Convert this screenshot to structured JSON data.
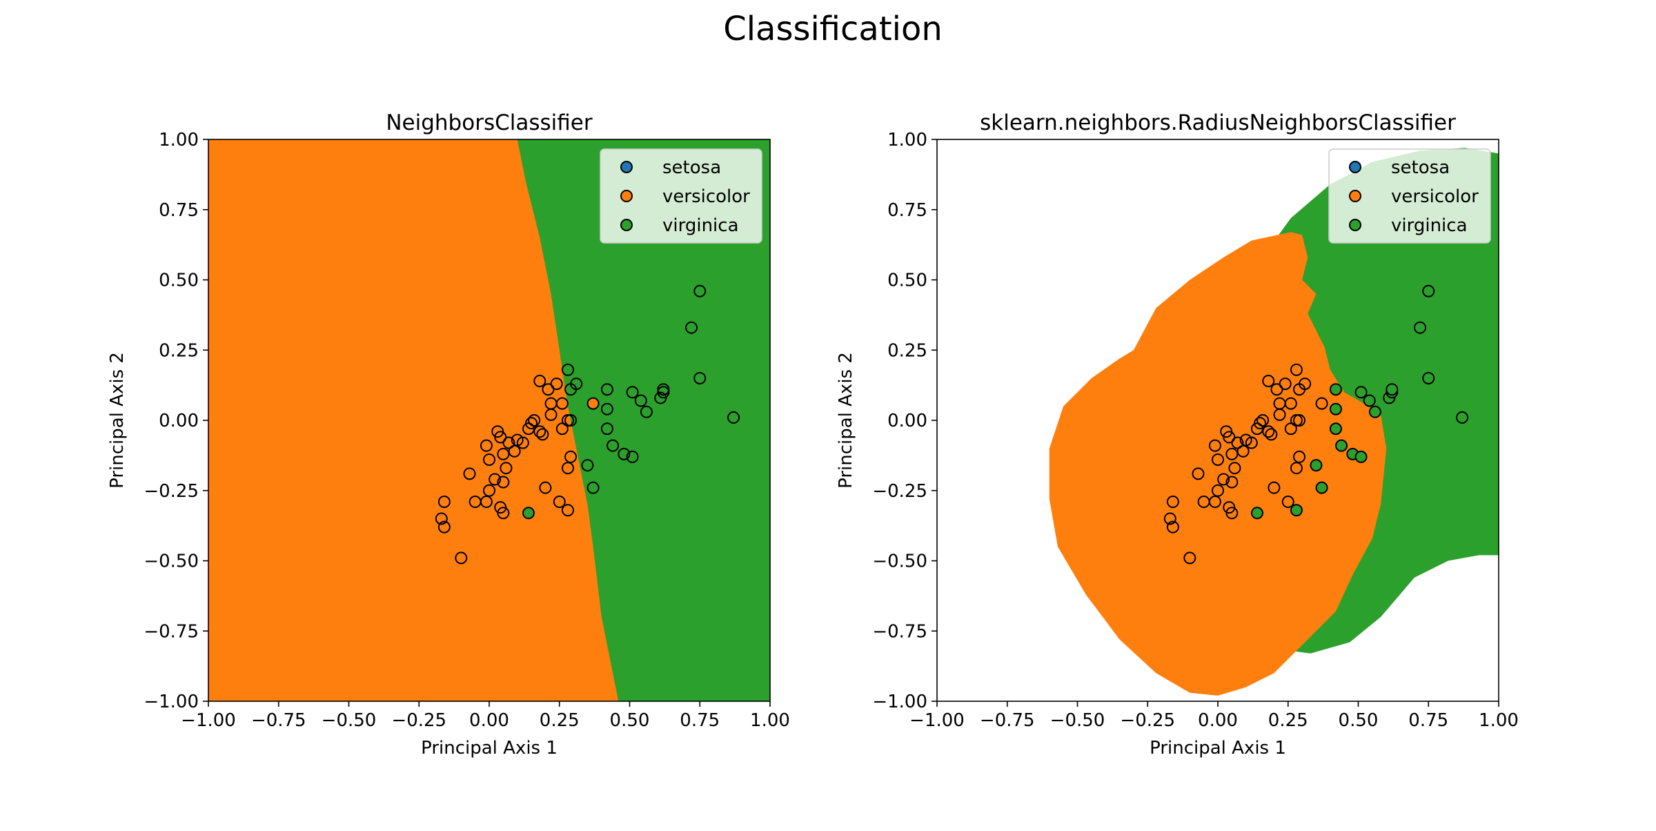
{
  "figure": {
    "title": "Classification"
  },
  "colors": {
    "setosa": "#1f77b4",
    "versicolor": "#ff7f0e",
    "virginica": "#2ca02c",
    "marker_edge": "#000000"
  },
  "chart_data": [
    {
      "type": "scatter",
      "title": "NeighborsClassifier",
      "xlabel": "Principal Axis 1",
      "ylabel": "Principal Axis 2",
      "xlim": [
        -1.0,
        1.0
      ],
      "ylim": [
        -1.0,
        1.0
      ],
      "xticks": [
        "−1.00",
        "−0.75",
        "−0.50",
        "−0.25",
        "0.00",
        "0.25",
        "0.50",
        "0.75",
        "1.00"
      ],
      "yticks": [
        "−1.00",
        "−0.75",
        "−0.50",
        "−0.25",
        "0.00",
        "0.25",
        "0.50",
        "0.75",
        "1.00"
      ],
      "grid": false,
      "legend_position": "top-right",
      "legend": [
        "setosa",
        "versicolor",
        "virginica"
      ],
      "decision_regions": "versicolor region on the left, virginica region on the right; boundary runs from about x=0.10 at y=1.00 to about x=0.45 at y=-1.00",
      "points": {
        "open": [
          [
            -0.1,
            -0.49
          ],
          [
            -0.17,
            -0.35
          ],
          [
            -0.16,
            -0.38
          ],
          [
            -0.16,
            -0.29
          ],
          [
            -0.07,
            -0.19
          ],
          [
            -0.05,
            -0.29
          ],
          [
            -0.01,
            -0.29
          ],
          [
            0.0,
            -0.25
          ],
          [
            0.0,
            -0.14
          ],
          [
            -0.01,
            -0.09
          ],
          [
            0.03,
            -0.04
          ],
          [
            0.04,
            -0.06
          ],
          [
            0.02,
            -0.21
          ],
          [
            0.04,
            -0.31
          ],
          [
            0.05,
            -0.33
          ],
          [
            0.05,
            -0.22
          ],
          [
            0.06,
            -0.17
          ],
          [
            0.05,
            -0.12
          ],
          [
            0.07,
            -0.08
          ],
          [
            0.09,
            -0.11
          ],
          [
            0.1,
            -0.07
          ],
          [
            0.12,
            -0.08
          ],
          [
            0.14,
            -0.03
          ],
          [
            0.15,
            -0.01
          ],
          [
            0.16,
            0.0
          ],
          [
            0.18,
            -0.04
          ],
          [
            0.19,
            -0.05
          ],
          [
            0.18,
            0.14
          ],
          [
            0.21,
            0.11
          ],
          [
            0.22,
            0.06
          ],
          [
            0.22,
            0.02
          ],
          [
            0.24,
            0.13
          ],
          [
            0.26,
            0.06
          ],
          [
            0.26,
            -0.03
          ],
          [
            0.28,
            0.0
          ],
          [
            0.28,
            0.18
          ],
          [
            0.29,
            0.11
          ],
          [
            0.29,
            0.0
          ],
          [
            0.31,
            0.13
          ],
          [
            0.29,
            -0.13
          ],
          [
            0.28,
            -0.17
          ],
          [
            0.2,
            -0.24
          ],
          [
            0.25,
            -0.29
          ],
          [
            0.28,
            -0.32
          ],
          [
            0.37,
            -0.24
          ],
          [
            0.35,
            -0.16
          ],
          [
            0.42,
            -0.03
          ],
          [
            0.42,
            0.04
          ],
          [
            0.44,
            -0.09
          ],
          [
            0.48,
            -0.12
          ],
          [
            0.51,
            -0.13
          ],
          [
            0.42,
            0.11
          ],
          [
            0.51,
            0.1
          ],
          [
            0.54,
            0.07
          ],
          [
            0.56,
            0.03
          ],
          [
            0.61,
            0.08
          ],
          [
            0.62,
            0.1
          ],
          [
            0.62,
            0.11
          ],
          [
            0.72,
            0.33
          ],
          [
            0.75,
            0.46
          ],
          [
            0.75,
            0.15
          ],
          [
            0.87,
            0.01
          ]
        ],
        "versicolor": [
          [
            0.37,
            0.06
          ]
        ],
        "virginica": [
          [
            0.14,
            -0.33
          ]
        ]
      }
    },
    {
      "type": "scatter",
      "title": "sklearn.neighbors.RadiusNeighborsClassifier",
      "xlabel": "Principal Axis 1",
      "ylabel": "Principal Axis 2",
      "xlim": [
        -1.0,
        1.0
      ],
      "ylim": [
        -1.0,
        1.0
      ],
      "xticks": [
        "−1.00",
        "−0.75",
        "−0.50",
        "−0.25",
        "0.00",
        "0.25",
        "0.50",
        "0.75",
        "1.00"
      ],
      "yticks": [
        "−1.00",
        "−0.75",
        "−0.50",
        "−0.25",
        "0.00",
        "0.25",
        "0.50",
        "0.75",
        "1.00"
      ],
      "grid": false,
      "legend_position": "top-right",
      "legend": [
        "setosa",
        "versicolor",
        "virginica"
      ],
      "decision_regions": "versicolor blob centered near (0.0, -0.15); virginica region upper right behind it; outside white (no neighbors)",
      "points": {
        "open": [
          [
            -0.1,
            -0.49
          ],
          [
            -0.17,
            -0.35
          ],
          [
            -0.16,
            -0.38
          ],
          [
            -0.16,
            -0.29
          ],
          [
            -0.07,
            -0.19
          ],
          [
            -0.05,
            -0.29
          ],
          [
            -0.01,
            -0.29
          ],
          [
            0.0,
            -0.25
          ],
          [
            0.0,
            -0.14
          ],
          [
            -0.01,
            -0.09
          ],
          [
            0.03,
            -0.04
          ],
          [
            0.04,
            -0.06
          ],
          [
            0.02,
            -0.21
          ],
          [
            0.04,
            -0.31
          ],
          [
            0.05,
            -0.33
          ],
          [
            0.05,
            -0.22
          ],
          [
            0.06,
            -0.17
          ],
          [
            0.05,
            -0.12
          ],
          [
            0.07,
            -0.08
          ],
          [
            0.09,
            -0.11
          ],
          [
            0.1,
            -0.07
          ],
          [
            0.12,
            -0.08
          ],
          [
            0.14,
            -0.03
          ],
          [
            0.15,
            -0.01
          ],
          [
            0.16,
            0.0
          ],
          [
            0.18,
            -0.04
          ],
          [
            0.19,
            -0.05
          ],
          [
            0.18,
            0.14
          ],
          [
            0.21,
            0.11
          ],
          [
            0.22,
            0.06
          ],
          [
            0.22,
            0.02
          ],
          [
            0.24,
            0.13
          ],
          [
            0.26,
            0.06
          ],
          [
            0.26,
            -0.03
          ],
          [
            0.28,
            0.0
          ],
          [
            0.28,
            0.18
          ],
          [
            0.29,
            0.11
          ],
          [
            0.29,
            0.0
          ],
          [
            0.31,
            0.13
          ],
          [
            0.29,
            -0.13
          ],
          [
            0.28,
            -0.17
          ],
          [
            0.2,
            -0.24
          ],
          [
            0.25,
            -0.29
          ],
          [
            0.37,
            0.06
          ],
          [
            0.72,
            0.33
          ],
          [
            0.75,
            0.46
          ],
          [
            0.75,
            0.15
          ],
          [
            0.87,
            0.01
          ]
        ],
        "versicolor": [],
        "virginica": [
          [
            0.14,
            -0.33
          ],
          [
            0.28,
            -0.32
          ],
          [
            0.37,
            -0.24
          ],
          [
            0.35,
            -0.16
          ],
          [
            0.42,
            -0.03
          ],
          [
            0.42,
            0.04
          ],
          [
            0.44,
            -0.09
          ],
          [
            0.48,
            -0.12
          ],
          [
            0.51,
            -0.13
          ],
          [
            0.42,
            0.11
          ],
          [
            0.51,
            0.1
          ],
          [
            0.54,
            0.07
          ],
          [
            0.56,
            0.03
          ],
          [
            0.61,
            0.08
          ],
          [
            0.62,
            0.1
          ],
          [
            0.62,
            0.11
          ]
        ]
      }
    }
  ]
}
